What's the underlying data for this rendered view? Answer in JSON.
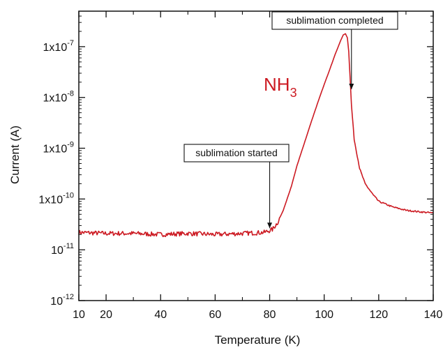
{
  "chart_data": {
    "type": "line",
    "title": "",
    "xlabel": "Temperature (K)",
    "ylabel": "Current (A)",
    "xlim": [
      10,
      140
    ],
    "ylim": [
      1e-12,
      5e-07
    ],
    "yscale": "log",
    "x_ticks": [
      10,
      20,
      40,
      60,
      80,
      100,
      120,
      140
    ],
    "x_tick_labels": [
      "10",
      "20",
      "40",
      "60",
      "80",
      "100",
      "120",
      "140"
    ],
    "y_ticks": [
      {
        "mantissa": "1x10",
        "exp": "-7",
        "value": 1e-07
      },
      {
        "mantissa": "1x10",
        "exp": "-8",
        "value": 1e-08
      },
      {
        "mantissa": "1x10",
        "exp": "-9",
        "value": 1e-09
      },
      {
        "mantissa": "1x10",
        "exp": "-10",
        "value": 1e-10
      },
      {
        "mantissa": "10",
        "exp": "-11",
        "value": 1e-11
      },
      {
        "mantissa": "10",
        "exp": "-12",
        "value": 1e-12
      }
    ],
    "grid": false,
    "series_label": {
      "base": "NH",
      "sub": "3"
    },
    "series": [
      {
        "color": "#cc1a22",
        "x": [
          10,
          20,
          30,
          40,
          50,
          60,
          70,
          78,
          81,
          83,
          85,
          88,
          90,
          93,
          95,
          98,
          100,
          102,
          104,
          106,
          107,
          107.8,
          108.5,
          109,
          109.5,
          110,
          111,
          113,
          115,
          118,
          120,
          125,
          130,
          135,
          140
        ],
        "y": [
          2.2e-11,
          2.1e-11,
          2.1e-11,
          2e-11,
          2.1e-11,
          2e-11,
          2.1e-11,
          2.2e-11,
          2.5e-11,
          3.5e-11,
          6e-11,
          1.8e-10,
          4.5e-10,
          1.4e-09,
          3e-09,
          9e-09,
          1.8e-08,
          3.5e-08,
          7e-08,
          1.3e-07,
          1.7e-07,
          1.8e-07,
          1.5e-07,
          8e-08,
          2.5e-08,
          7e-09,
          1.5e-09,
          4e-10,
          2e-10,
          1.2e-10,
          9e-11,
          7e-11,
          6e-11,
          5.6e-11,
          5.3e-11
        ]
      }
    ],
    "annotations": [
      {
        "text": "sublimation started",
        "x": 80,
        "y": 2.2e-11
      },
      {
        "text": "sublimation completed",
        "x": 110,
        "y": 1.2e-08
      }
    ]
  }
}
